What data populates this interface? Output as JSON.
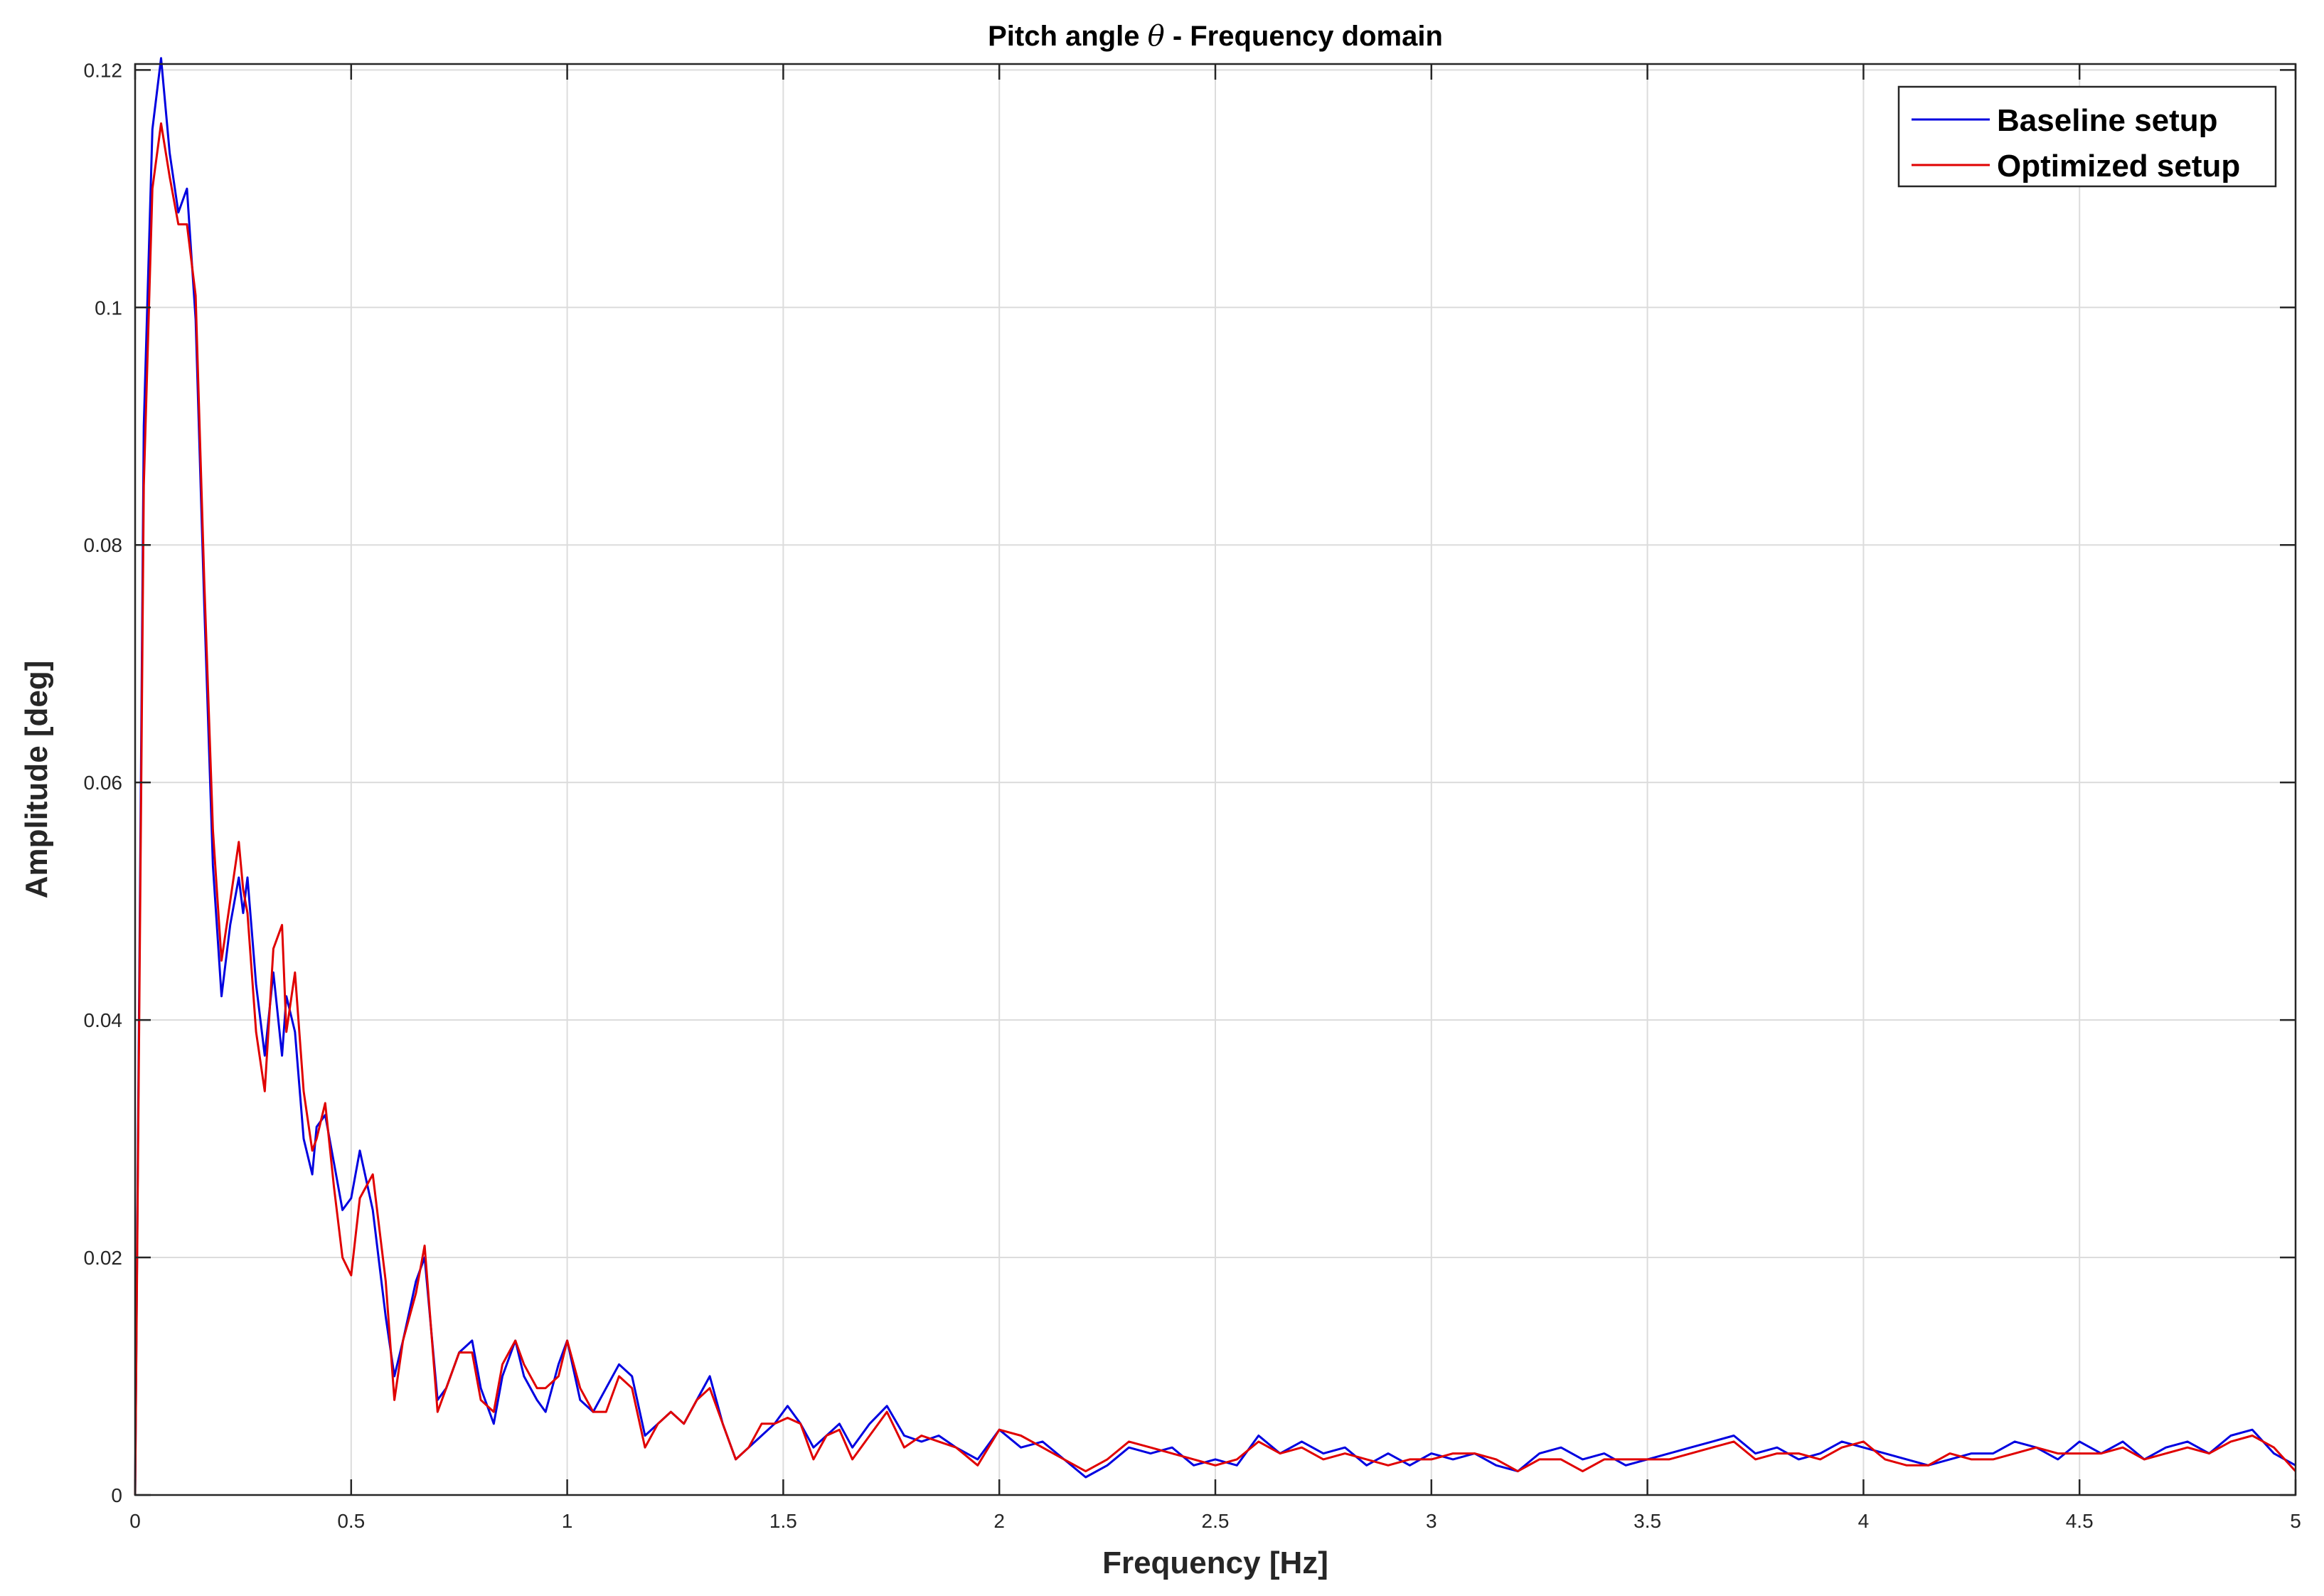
{
  "chart_data": {
    "type": "line",
    "title_prefix": "Pitch angle ",
    "title_symbol": "θ",
    "title_suffix": " - Frequency domain",
    "xlabel": "Frequency [Hz]",
    "ylabel": "Amplitude [deg]",
    "xlim": [
      0,
      5
    ],
    "ylim": [
      0,
      0.1205
    ],
    "xticks": [
      0,
      0.5,
      1,
      1.5,
      2,
      2.5,
      3,
      3.5,
      4,
      4.5,
      5
    ],
    "xtick_labels": [
      "0",
      "0.5",
      "1",
      "1.5",
      "2",
      "2.5",
      "3",
      "3.5",
      "4",
      "4.5",
      "5"
    ],
    "yticks": [
      0,
      0.02,
      0.04,
      0.06,
      0.08,
      0.1,
      0.12
    ],
    "ytick_labels": [
      "0",
      "0.02",
      "0.04",
      "0.06",
      "0.08",
      "0.1",
      "0.12"
    ],
    "grid": true,
    "legend_position": "top-right",
    "series": [
      {
        "name": "Baseline setup",
        "color": "#0000e0",
        "x": [
          0,
          0.02,
          0.04,
          0.06,
          0.08,
          0.1,
          0.12,
          0.14,
          0.16,
          0.18,
          0.2,
          0.22,
          0.24,
          0.25,
          0.26,
          0.28,
          0.3,
          0.32,
          0.34,
          0.35,
          0.37,
          0.39,
          0.41,
          0.42,
          0.44,
          0.46,
          0.48,
          0.5,
          0.52,
          0.55,
          0.58,
          0.6,
          0.62,
          0.65,
          0.67,
          0.7,
          0.72,
          0.75,
          0.78,
          0.8,
          0.83,
          0.85,
          0.88,
          0.9,
          0.93,
          0.95,
          0.98,
          1.0,
          1.03,
          1.06,
          1.09,
          1.12,
          1.15,
          1.18,
          1.21,
          1.24,
          1.27,
          1.3,
          1.33,
          1.36,
          1.39,
          1.42,
          1.45,
          1.48,
          1.51,
          1.54,
          1.57,
          1.6,
          1.63,
          1.66,
          1.7,
          1.74,
          1.78,
          1.82,
          1.86,
          1.9,
          1.95,
          2.0,
          2.05,
          2.1,
          2.15,
          2.2,
          2.25,
          2.3,
          2.35,
          2.4,
          2.45,
          2.5,
          2.55,
          2.6,
          2.65,
          2.7,
          2.75,
          2.8,
          2.85,
          2.9,
          2.95,
          3.0,
          3.05,
          3.1,
          3.15,
          3.2,
          3.25,
          3.3,
          3.35,
          3.4,
          3.45,
          3.5,
          3.55,
          3.6,
          3.65,
          3.7,
          3.75,
          3.8,
          3.85,
          3.9,
          3.95,
          4.0,
          4.05,
          4.1,
          4.15,
          4.2,
          4.25,
          4.3,
          4.35,
          4.4,
          4.45,
          4.5,
          4.55,
          4.6,
          4.65,
          4.7,
          4.75,
          4.8,
          4.85,
          4.9,
          4.95,
          5.0
        ],
        "y": [
          0,
          0.09,
          0.115,
          0.121,
          0.113,
          0.108,
          0.11,
          0.099,
          0.075,
          0.053,
          0.042,
          0.048,
          0.052,
          0.049,
          0.052,
          0.043,
          0.037,
          0.044,
          0.037,
          0.042,
          0.039,
          0.03,
          0.027,
          0.031,
          0.032,
          0.028,
          0.024,
          0.025,
          0.029,
          0.024,
          0.015,
          0.01,
          0.013,
          0.018,
          0.02,
          0.008,
          0.009,
          0.012,
          0.013,
          0.009,
          0.006,
          0.01,
          0.013,
          0.01,
          0.008,
          0.007,
          0.011,
          0.013,
          0.008,
          0.007,
          0.009,
          0.011,
          0.01,
          0.005,
          0.006,
          0.007,
          0.006,
          0.008,
          0.01,
          0.006,
          0.003,
          0.004,
          0.005,
          0.006,
          0.0075,
          0.006,
          0.004,
          0.005,
          0.006,
          0.004,
          0.006,
          0.0075,
          0.005,
          0.0045,
          0.005,
          0.004,
          0.003,
          0.0055,
          0.004,
          0.0045,
          0.003,
          0.0015,
          0.0025,
          0.004,
          0.0035,
          0.004,
          0.0025,
          0.003,
          0.0025,
          0.005,
          0.0035,
          0.0045,
          0.0035,
          0.004,
          0.0025,
          0.0035,
          0.0025,
          0.0035,
          0.003,
          0.0035,
          0.0025,
          0.002,
          0.0035,
          0.004,
          0.003,
          0.0035,
          0.0025,
          0.003,
          0.0035,
          0.004,
          0.0045,
          0.005,
          0.0035,
          0.004,
          0.003,
          0.0035,
          0.0045,
          0.004,
          0.0035,
          0.003,
          0.0025,
          0.003,
          0.0035,
          0.0035,
          0.0045,
          0.004,
          0.003,
          0.0045,
          0.0035,
          0.0045,
          0.003,
          0.004,
          0.0045,
          0.0035,
          0.005,
          0.0055,
          0.0035,
          0.0025
        ]
      },
      {
        "name": "Optimized setup",
        "color": "#e00000",
        "x": [
          0,
          0.02,
          0.04,
          0.06,
          0.08,
          0.1,
          0.12,
          0.14,
          0.16,
          0.18,
          0.2,
          0.22,
          0.24,
          0.25,
          0.26,
          0.28,
          0.3,
          0.32,
          0.34,
          0.35,
          0.37,
          0.39,
          0.41,
          0.42,
          0.44,
          0.46,
          0.48,
          0.5,
          0.52,
          0.55,
          0.58,
          0.6,
          0.62,
          0.65,
          0.67,
          0.7,
          0.72,
          0.75,
          0.78,
          0.8,
          0.83,
          0.85,
          0.88,
          0.9,
          0.93,
          0.95,
          0.98,
          1.0,
          1.03,
          1.06,
          1.09,
          1.12,
          1.15,
          1.18,
          1.21,
          1.24,
          1.27,
          1.3,
          1.33,
          1.36,
          1.39,
          1.42,
          1.45,
          1.48,
          1.51,
          1.54,
          1.57,
          1.6,
          1.63,
          1.66,
          1.7,
          1.74,
          1.78,
          1.82,
          1.86,
          1.9,
          1.95,
          2.0,
          2.05,
          2.1,
          2.15,
          2.2,
          2.25,
          2.3,
          2.35,
          2.4,
          2.45,
          2.5,
          2.55,
          2.6,
          2.65,
          2.7,
          2.75,
          2.8,
          2.85,
          2.9,
          2.95,
          3.0,
          3.05,
          3.1,
          3.15,
          3.2,
          3.25,
          3.3,
          3.35,
          3.4,
          3.45,
          3.5,
          3.55,
          3.6,
          3.65,
          3.7,
          3.75,
          3.8,
          3.85,
          3.9,
          3.95,
          4.0,
          4.05,
          4.1,
          4.15,
          4.2,
          4.25,
          4.3,
          4.35,
          4.4,
          4.45,
          4.5,
          4.55,
          4.6,
          4.65,
          4.7,
          4.75,
          4.8,
          4.85,
          4.9,
          4.95,
          5.0
        ],
        "y": [
          0,
          0.085,
          0.11,
          0.1155,
          0.111,
          0.107,
          0.107,
          0.101,
          0.077,
          0.056,
          0.045,
          0.05,
          0.055,
          0.051,
          0.049,
          0.039,
          0.034,
          0.046,
          0.048,
          0.039,
          0.044,
          0.034,
          0.029,
          0.03,
          0.033,
          0.026,
          0.02,
          0.0185,
          0.025,
          0.027,
          0.018,
          0.008,
          0.013,
          0.017,
          0.021,
          0.007,
          0.009,
          0.012,
          0.012,
          0.008,
          0.007,
          0.011,
          0.013,
          0.011,
          0.009,
          0.009,
          0.01,
          0.013,
          0.009,
          0.007,
          0.007,
          0.01,
          0.009,
          0.004,
          0.006,
          0.007,
          0.006,
          0.008,
          0.009,
          0.006,
          0.003,
          0.004,
          0.006,
          0.006,
          0.0065,
          0.006,
          0.003,
          0.005,
          0.0055,
          0.003,
          0.005,
          0.007,
          0.004,
          0.005,
          0.0045,
          0.004,
          0.0025,
          0.0055,
          0.005,
          0.004,
          0.003,
          0.002,
          0.003,
          0.0045,
          0.004,
          0.0035,
          0.003,
          0.0025,
          0.003,
          0.0045,
          0.0035,
          0.004,
          0.003,
          0.0035,
          0.003,
          0.0025,
          0.003,
          0.003,
          0.0035,
          0.0035,
          0.003,
          0.002,
          0.003,
          0.003,
          0.002,
          0.003,
          0.003,
          0.003,
          0.003,
          0.0035,
          0.004,
          0.0045,
          0.003,
          0.0035,
          0.0035,
          0.003,
          0.004,
          0.0045,
          0.003,
          0.0025,
          0.0025,
          0.0035,
          0.003,
          0.003,
          0.0035,
          0.004,
          0.0035,
          0.0035,
          0.0035,
          0.004,
          0.003,
          0.0035,
          0.004,
          0.0035,
          0.0045,
          0.005,
          0.004,
          0.002
        ]
      }
    ]
  }
}
